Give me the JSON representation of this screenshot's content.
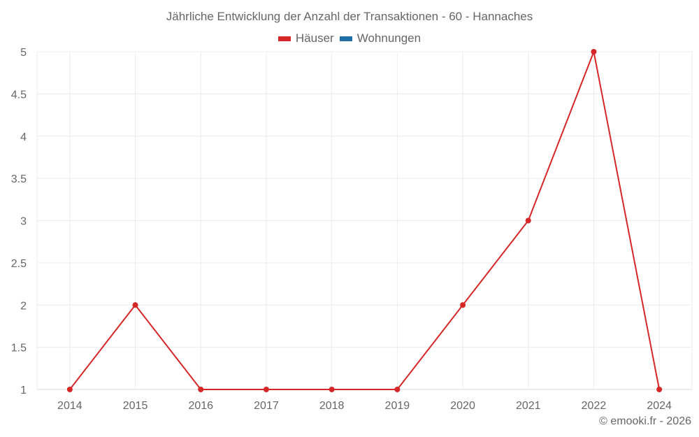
{
  "chart_data": {
    "type": "line",
    "title": "Jährliche Entwicklung der Anzahl der Transaktionen - 60 - Hannaches",
    "categories": [
      "2014",
      "2015",
      "2016",
      "2017",
      "2018",
      "2019",
      "2020",
      "2021",
      "2022",
      "2024"
    ],
    "series": [
      {
        "name": "Häuser",
        "color": "#d62728",
        "values": [
          1,
          2,
          1,
          1,
          1,
          1,
          2,
          3,
          5,
          1
        ]
      },
      {
        "name": "Wohnungen",
        "color": "#1f6fa8",
        "values": []
      }
    ],
    "xlabel": "",
    "ylabel": "",
    "ylim": [
      1,
      5
    ],
    "yticks": [
      "1",
      "1.5",
      "2",
      "2.5",
      "3",
      "3.5",
      "4",
      "4.5",
      "5"
    ],
    "grid": true,
    "legend_position": "top"
  },
  "legend": [
    {
      "label": "Häuser",
      "color": "#d62728"
    },
    {
      "label": "Wohnungen",
      "color": "#1f6fa8"
    }
  ],
  "credit": "© emooki.fr - 2026"
}
